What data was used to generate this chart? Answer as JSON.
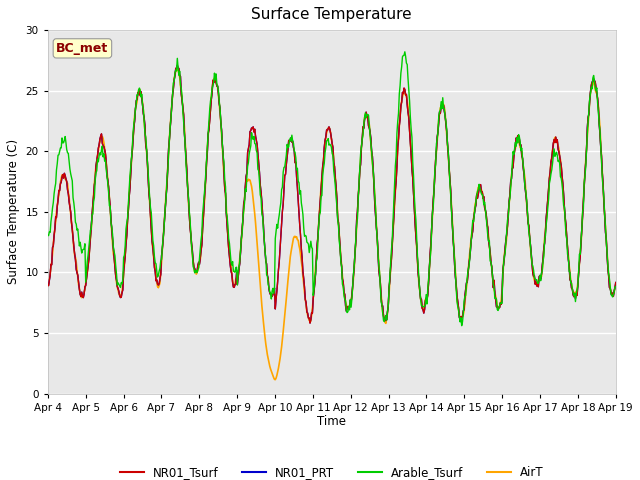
{
  "title": "Surface Temperature",
  "ylabel": "Surface Temperature (C)",
  "xlabel": "Time",
  "ylim": [
    0,
    30
  ],
  "plot_bg": "#e8e8e8",
  "fig_bg": "#ffffff",
  "grid_color": "#ffffff",
  "annotation_label": "BC_met",
  "annotation_color": "#8B0000",
  "annotation_bg": "#ffffcc",
  "legend_labels": [
    "NR01_Tsurf",
    "NR01_PRT",
    "Arable_Tsurf",
    "AirT"
  ],
  "line_colors": [
    "#cc0000",
    "#0000cc",
    "#00cc00",
    "#ffa500"
  ],
  "x_tick_labels": [
    "Apr 4",
    "Apr 5",
    "Apr 6",
    "Apr 7",
    "Apr 8",
    "Apr 9",
    "Apr 10",
    "Apr 11",
    "Apr 12",
    "Apr 13",
    "Apr 14",
    "Apr 15",
    "Apr 16",
    "Apr 17",
    "Apr 18",
    "Apr 19"
  ],
  "nr01_peaks": [
    18,
    21,
    25,
    27,
    26,
    22,
    21,
    22,
    23,
    25,
    24,
    17,
    21,
    21,
    26
  ],
  "nr01_troughs": [
    8,
    8,
    9,
    10,
    9,
    8,
    6,
    7,
    6,
    7,
    6,
    7,
    9,
    8,
    8
  ],
  "arable_peaks": [
    21,
    20,
    25,
    27,
    26,
    21,
    21,
    21,
    23,
    28,
    24,
    17,
    21,
    20,
    26
  ],
  "arable_troughs": [
    12,
    9,
    10,
    10,
    10,
    8,
    12,
    7,
    6,
    7,
    6,
    7,
    9,
    8,
    8
  ],
  "air_spike_day": 6.0,
  "air_spike_value": 1.0,
  "n_points": 720
}
